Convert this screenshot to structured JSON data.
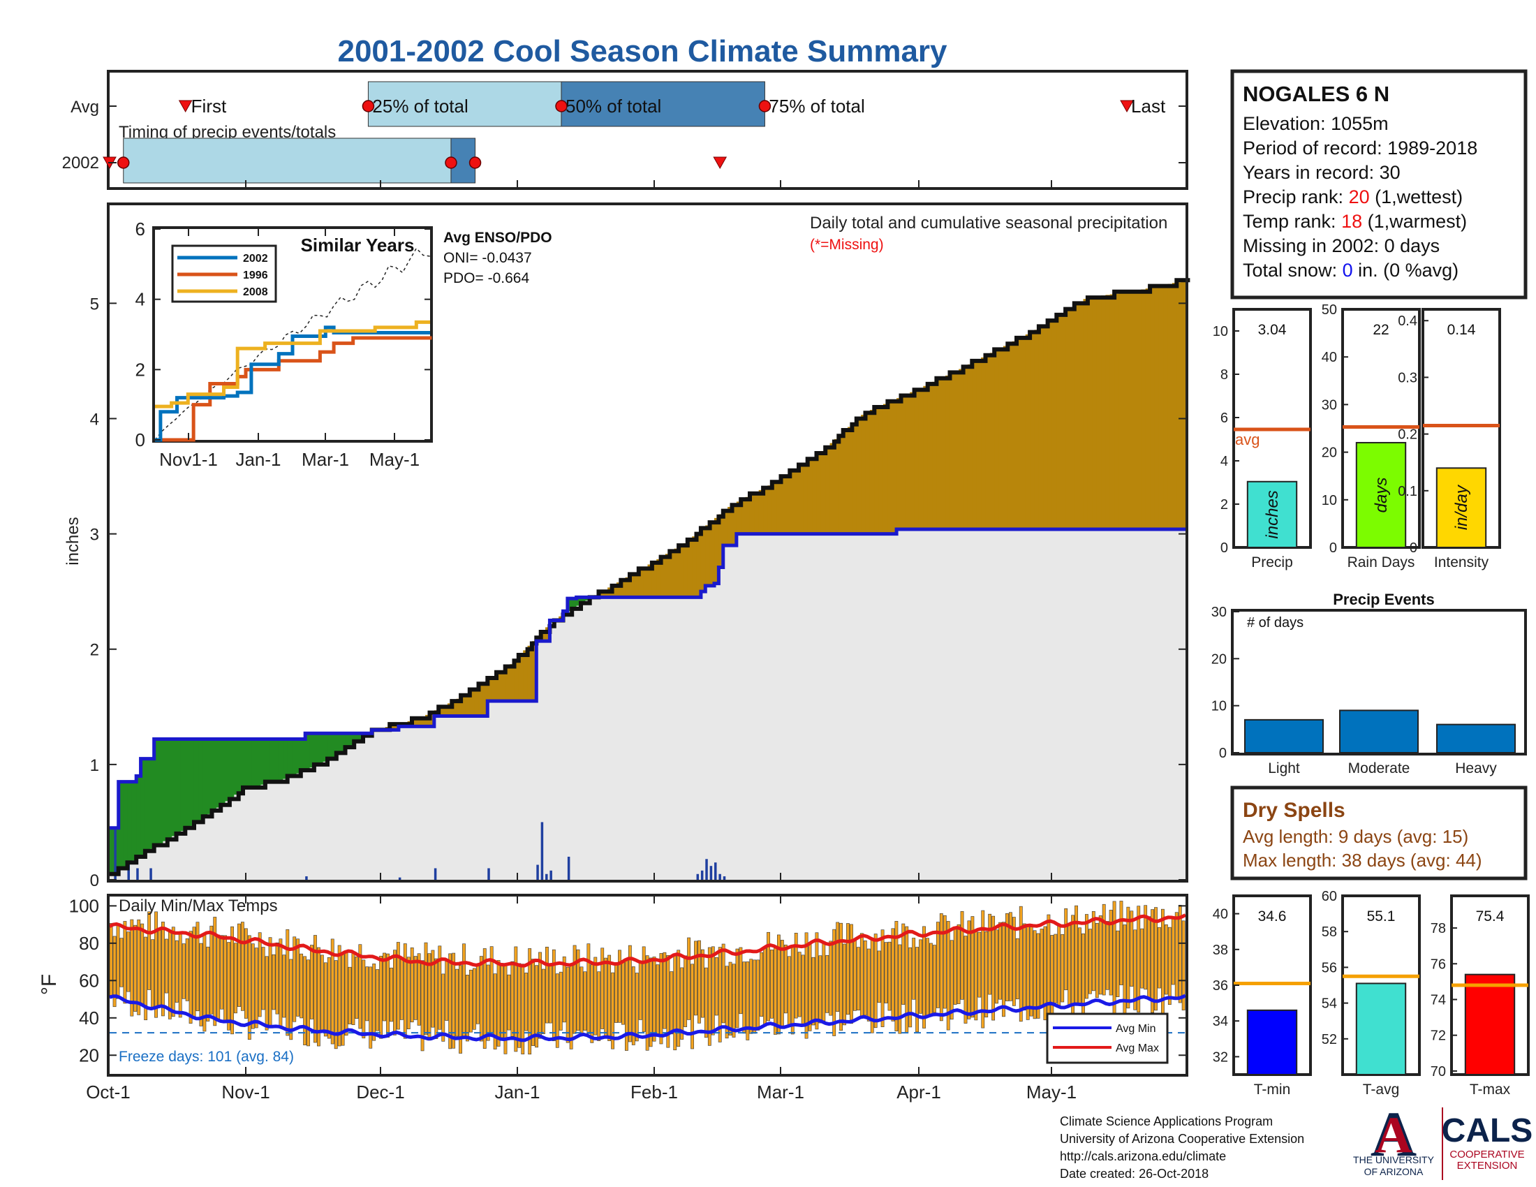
{
  "title": "2001-2002 Cool Season Climate Summary",
  "colors": {
    "title": "#1f5aa0",
    "deficit_fill": "#b8860b",
    "surplus_fill": "#228b22",
    "avg_cum_fill": "#e8e8e8",
    "avg_cum_line": "#1a1acc",
    "year_cum_line": "#111111",
    "daily_bar": "#1f3fa0",
    "temp_bar": "#f2a320",
    "avg_max": "#e21a1a",
    "avg_min": "#1a1ae6",
    "freeze_line": "#1a6fc4",
    "q25": "#add8e6",
    "q50": "#4682b4",
    "red": "#e11",
    "drySpells": "#8b4513",
    "ua_red": "#ab0520",
    "ua_blue": "#0c234b"
  },
  "timing_panel": {
    "row_labels": [
      "Avg",
      "2002"
    ],
    "subtitle": "Timing of precip events/totals",
    "avg_markers": {
      "first": "First",
      "q25": "25% of total",
      "q50": "50% of total",
      "q75": "75% of total",
      "last": "Last"
    },
    "avg_days": {
      "first": 22,
      "q25": 75,
      "q50": 131,
      "q75": 190,
      "last": 295
    },
    "y2002_days": {
      "first": 0,
      "q25": 4,
      "q50": 99,
      "q75": 106,
      "last": 177
    }
  },
  "precip_panel": {
    "ylabel": "inches",
    "annotation": "Daily total and cumulative seasonal precipitation",
    "missing_note": "(*=Missing)",
    "y_ticks": [
      "0",
      "1",
      "2",
      "3",
      "4",
      "5"
    ],
    "ylim": [
      0,
      5.85
    ],
    "x_tick_labels": [
      "Oct-1",
      "Nov-1",
      "Dec-1",
      "Jan-1",
      "Feb-1",
      "Mar-1",
      "Apr-1",
      "May-1"
    ]
  },
  "inset": {
    "title": "Similar Years",
    "legend": [
      "2002",
      "1996",
      "2008"
    ],
    "series_colors": [
      "#0072bd",
      "#d95319",
      "#edb120"
    ],
    "y_ticks": [
      "0",
      "2",
      "4",
      "6"
    ],
    "x_ticks": [
      "Nov1-1",
      "Jan-1",
      "Mar-1",
      "May-1"
    ],
    "enso_title": "Avg ENSO/PDO",
    "oni": "ONI= -0.0437",
    "pdo": "PDO= -0.664"
  },
  "temp_panel": {
    "ylabel": "°F",
    "title": "Daily Min/Max Temps",
    "y_ticks": [
      "20",
      "40",
      "60",
      "80",
      "100"
    ],
    "ylim": [
      10,
      105
    ],
    "freeze": "Freeze days: 101 (avg. 84)",
    "legend": [
      "Avg Min",
      "Avg Max"
    ]
  },
  "station": {
    "name": "NOGALES 6 N",
    "elevation": "Elevation: 1055m",
    "period": "Period of record: 1989-2018",
    "years": "Years in record: 30",
    "precip_rank_label": "Precip rank: ",
    "precip_rank_value": "20",
    "precip_rank_note": " (1,wettest)",
    "temp_rank_label": "Temp rank: ",
    "temp_rank_value": "18",
    "temp_rank_note": " (1,warmest)",
    "missing": "Missing in 2002: 0 days",
    "snow_label": "Total snow: ",
    "snow_value": "0",
    "snow_note": " in. (0 %avg)"
  },
  "bar_stats": [
    {
      "label": "Precip",
      "value": 3.04,
      "display": "3.04",
      "avg": 5.45,
      "ymax": 11,
      "ticks": [
        "0",
        "2",
        "4",
        "6",
        "8",
        "10"
      ],
      "tick_vals": [
        0,
        2,
        4,
        6,
        8,
        10
      ],
      "color": "#40e0d0",
      "unit": "inches",
      "avg_label": "avg"
    },
    {
      "label": "Rain Days",
      "value": 22,
      "display": "22",
      "avg": 25.3,
      "ymax": 50,
      "ticks": [
        "0",
        "10",
        "20",
        "30",
        "40",
        "50"
      ],
      "tick_vals": [
        0,
        10,
        20,
        30,
        40,
        50
      ],
      "color": "#7cfc00",
      "unit": "days",
      "avg_label": ""
    },
    {
      "label": "Intensity",
      "value": 0.14,
      "display": "0.14",
      "avg": 0.215,
      "ymax": 0.42,
      "ticks": [
        "0",
        "0.1",
        "0.2",
        "0.3",
        "0.4"
      ],
      "tick_vals": [
        0,
        0.1,
        0.2,
        0.3,
        0.4
      ],
      "color": "#ffd700",
      "unit": "in/day",
      "avg_label": ""
    }
  ],
  "precip_events": {
    "title": "Precip Events",
    "ylabel": "# of days",
    "categories": [
      "Light",
      "Moderate",
      "Heavy"
    ],
    "values": [
      7,
      9,
      6
    ],
    "y_ticks": [
      "0",
      "10",
      "20",
      "30"
    ],
    "color": "#0072bd"
  },
  "dry_spells": {
    "title": "Dry Spells",
    "avg_length": "Avg length: 9 days (avg: 15)",
    "max_length": "Max length: 38 days (avg: 44)"
  },
  "temp_stats": [
    {
      "label": "T-min",
      "value": 34.6,
      "display": "34.6",
      "avg": 36.1,
      "ymin": 31,
      "ymax": 41,
      "ticks": [
        "32",
        "34",
        "36",
        "38",
        "40"
      ],
      "tick_vals": [
        32,
        34,
        36,
        38,
        40
      ],
      "color": "#0000ff"
    },
    {
      "label": "T-avg",
      "value": 55.1,
      "display": "55.1",
      "avg": 55.5,
      "ymin": 50,
      "ymax": 60,
      "ticks": [
        "52",
        "54",
        "56",
        "58",
        "60"
      ],
      "tick_vals": [
        52,
        54,
        56,
        58,
        60
      ],
      "color": "#40e0d0"
    },
    {
      "label": "T-max",
      "value": 75.4,
      "display": "75.4",
      "avg": 74.8,
      "ymin": 69.8,
      "ymax": 79.8,
      "ticks": [
        "70",
        "72",
        "74",
        "76",
        "78"
      ],
      "tick_vals": [
        70,
        72,
        74,
        76,
        78
      ],
      "color": "#ff0000"
    }
  ],
  "footer": {
    "line1": "Climate Science Applications Program",
    "line2": "University of Arizona Cooperative Extension",
    "line3": "http://cals.arizona.edu/climate",
    "line4": " Date created: 26-Oct-2018",
    "ua_name_1": "THE UNIVERSITY",
    "ua_name_2": "OF ARIZONA",
    "cals": "CALS",
    "cals_sub_1": "COOPERATIVE",
    "cals_sub_2": "EXTENSION"
  },
  "chart_data": [
    {
      "type": "area",
      "title": "Daily total and cumulative seasonal precipitation",
      "xlabel": "",
      "ylabel": "inches",
      "ylim": [
        0,
        5.85
      ],
      "x_ticks": [
        "Oct-1",
        "Nov-1",
        "Dec-1",
        "Jan-1",
        "Feb-1",
        "Mar-1",
        "Apr-1",
        "May-1"
      ],
      "series": [
        {
          "name": "2002 cumulative",
          "points": [
            [
              0,
              0.45
            ],
            [
              1,
              0.45
            ],
            [
              2,
              0.85
            ],
            [
              6,
              0.9
            ],
            [
              7,
              1.05
            ],
            [
              9,
              1.05
            ],
            [
              10,
              1.22
            ],
            [
              43,
              1.22
            ],
            [
              44,
              1.27
            ],
            [
              59,
              1.3
            ],
            [
              64,
              1.3
            ],
            [
              65,
              1.33
            ],
            [
              72,
              1.33
            ],
            [
              73,
              1.42
            ],
            [
              84,
              1.42
            ],
            [
              85,
              1.55
            ],
            [
              95,
              1.55
            ],
            [
              96,
              2.07
            ],
            [
              98,
              2.07
            ],
            [
              99,
              2.25
            ],
            [
              102,
              2.33
            ],
            [
              103,
              2.44
            ],
            [
              105,
              2.45
            ],
            [
              106,
              2.45
            ],
            [
              132,
              2.45
            ],
            [
              133,
              2.5
            ],
            [
              134,
              2.55
            ],
            [
              136,
              2.57
            ],
            [
              137,
              2.71
            ],
            [
              138,
              2.9
            ],
            [
              141,
              3.0
            ],
            [
              143,
              3.0
            ],
            [
              177,
              3.04
            ],
            [
              242,
              3.04
            ]
          ]
        },
        {
          "name": "Average cumulative",
          "points": [
            [
              0,
              0.03
            ],
            [
              10,
              0.28
            ],
            [
              20,
              0.5
            ],
            [
              30,
              0.78
            ],
            [
              40,
              0.88
            ],
            [
              50,
              1.05
            ],
            [
              60,
              1.3
            ],
            [
              70,
              1.4
            ],
            [
              80,
              1.6
            ],
            [
              90,
              1.85
            ],
            [
              100,
              2.25
            ],
            [
              110,
              2.48
            ],
            [
              120,
              2.7
            ],
            [
              130,
              2.93
            ],
            [
              140,
              3.25
            ],
            [
              150,
              3.45
            ],
            [
              160,
              3.7
            ],
            [
              170,
              4.05
            ],
            [
              180,
              4.22
            ],
            [
              190,
              4.4
            ],
            [
              200,
              4.6
            ],
            [
              210,
              4.8
            ],
            [
              220,
              5.05
            ],
            [
              230,
              5.1
            ],
            [
              240,
              5.18
            ],
            [
              250,
              5.22
            ],
            [
              260,
              5.24
            ],
            [
              270,
              5.25
            ],
            [
              280,
              5.3
            ],
            [
              290,
              5.35
            ],
            [
              300,
              5.4
            ],
            [
              311,
              5.45
            ]
          ]
        }
      ],
      "daily_totals": [
        [
          1,
          0.45
        ],
        [
          4,
          0.15
        ],
        [
          6,
          0.1
        ],
        [
          9,
          0.1
        ],
        [
          44,
          0.03
        ],
        [
          65,
          0.02
        ],
        [
          73,
          0.1
        ],
        [
          85,
          0.1
        ],
        [
          96,
          0.13
        ],
        [
          97,
          0.5
        ],
        [
          98,
          0.05
        ],
        [
          99,
          0.08
        ],
        [
          103,
          0.2
        ],
        [
          132,
          0.05
        ],
        [
          133,
          0.08
        ],
        [
          134,
          0.18
        ],
        [
          135,
          0.12
        ],
        [
          136,
          0.15
        ],
        [
          137,
          0.05
        ],
        [
          138,
          0.03
        ]
      ],
      "x_unit": "days since Oct-1"
    },
    {
      "type": "line",
      "title": "Similar Years",
      "legend": [
        "2002",
        "1996",
        "2008"
      ],
      "y_range": [
        0,
        6
      ],
      "x_ticks": [
        "Nov1-1",
        "Jan-1",
        "Mar-1",
        "May-1"
      ],
      "series": [
        {
          "name": "2002",
          "points": [
            [
              0,
              0
            ],
            [
              0.02,
              0.8
            ],
            [
              0.08,
              1.2
            ],
            [
              0.25,
              1.25
            ],
            [
              0.3,
              1.35
            ],
            [
              0.35,
              2.15
            ],
            [
              0.45,
              2.45
            ],
            [
              0.5,
              2.95
            ],
            [
              0.62,
              3.2
            ],
            [
              0.65,
              3.05
            ],
            [
              1,
              3.05
            ]
          ]
        },
        {
          "name": "1996",
          "points": [
            [
              0,
              0
            ],
            [
              0.13,
              0
            ],
            [
              0.14,
              1
            ],
            [
              0.2,
              1.6
            ],
            [
              0.3,
              1.8
            ],
            [
              0.33,
              2.0
            ],
            [
              0.45,
              2.25
            ],
            [
              0.6,
              2.5
            ],
            [
              0.65,
              2.75
            ],
            [
              0.72,
              2.9
            ],
            [
              1,
              2.95
            ]
          ]
        },
        {
          "name": "2008",
          "points": [
            [
              0,
              0.95
            ],
            [
              0.06,
              1.05
            ],
            [
              0.12,
              1.3
            ],
            [
              0.25,
              1.5
            ],
            [
              0.3,
              2.6
            ],
            [
              0.4,
              2.75
            ],
            [
              0.6,
              3.1
            ],
            [
              0.8,
              3.2
            ],
            [
              0.95,
              3.35
            ],
            [
              1,
              3.35
            ]
          ]
        }
      ]
    },
    {
      "type": "bar",
      "title": "Daily Min/Max Temps",
      "ylabel": "°F",
      "ylim": [
        10,
        105
      ],
      "legend": [
        "Avg Min",
        "Avg Max"
      ],
      "avg_max_points": [
        [
          0,
          89
        ],
        [
          30,
          84
        ],
        [
          60,
          76
        ],
        [
          90,
          70
        ],
        [
          120,
          69
        ],
        [
          150,
          70
        ],
        [
          180,
          75
        ],
        [
          210,
          81
        ],
        [
          240,
          86
        ],
        [
          270,
          90
        ],
        [
          300,
          93
        ],
        [
          311,
          94
        ]
      ],
      "avg_min_points": [
        [
          0,
          51
        ],
        [
          30,
          39
        ],
        [
          60,
          33
        ],
        [
          90,
          30
        ],
        [
          120,
          29
        ],
        [
          150,
          30
        ],
        [
          180,
          34
        ],
        [
          210,
          38
        ],
        [
          240,
          42
        ],
        [
          270,
          46
        ],
        [
          300,
          50
        ],
        [
          311,
          51
        ]
      ],
      "freeze_line": 32
    },
    {
      "type": "bar",
      "title": "Precip",
      "values": [
        3.04
      ],
      "avg": 5.45
    },
    {
      "type": "bar",
      "title": "Rain Days",
      "values": [
        22
      ],
      "avg": 25.3
    },
    {
      "type": "bar",
      "title": "Intensity",
      "values": [
        0.14
      ],
      "avg": 0.215
    },
    {
      "type": "bar",
      "title": "Precip Events",
      "categories": [
        "Light",
        "Moderate",
        "Heavy"
      ],
      "values": [
        7,
        9,
        6
      ]
    },
    {
      "type": "bar",
      "title": "T-min",
      "values": [
        34.6
      ],
      "avg": 36.1
    },
    {
      "type": "bar",
      "title": "T-avg",
      "values": [
        55.1
      ],
      "avg": 55.5
    },
    {
      "type": "bar",
      "title": "T-max",
      "values": [
        75.4
      ],
      "avg": 74.8
    }
  ]
}
